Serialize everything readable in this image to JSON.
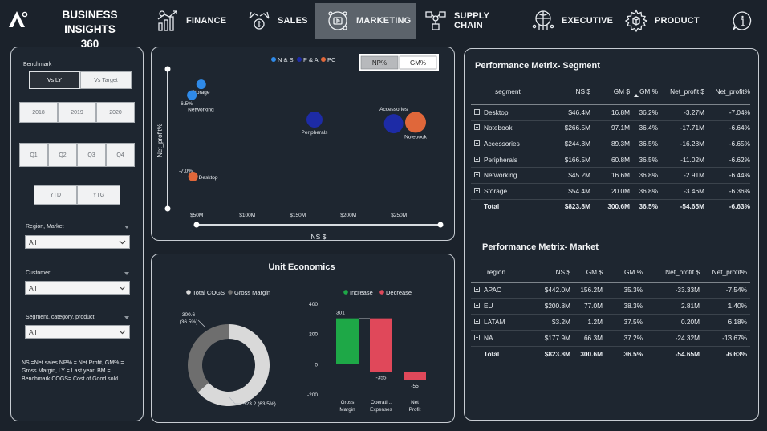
{
  "header": {
    "brand_line1": "BUSINESS INSIGHTS",
    "brand_line2": "360",
    "nav": [
      {
        "label": "FINANCE",
        "icon": "finance-chart-icon"
      },
      {
        "label": "SALES",
        "icon": "sales-money-icon"
      },
      {
        "label": "MARKETING",
        "icon": "marketing-icon"
      },
      {
        "label": "SUPPLY CHAIN",
        "icon": "supply-chain-icon"
      },
      {
        "label": "EXECUTIVE",
        "icon": "executive-icon"
      },
      {
        "label": "PRODUCT",
        "icon": "product-gear-icon"
      }
    ],
    "active_nav": "MARKETING",
    "info_icon": "info-icon"
  },
  "filters": {
    "benchmark_label": "Benchmark",
    "benchmark_options": [
      "Vs LY",
      "Vs Target"
    ],
    "benchmark_selected": "Vs LY",
    "years": [
      "2018",
      "2019",
      "2020"
    ],
    "quarters": [
      "Q1",
      "Q2",
      "Q3",
      "Q4"
    ],
    "periods": [
      "YTD",
      "YTG"
    ],
    "region_label": "Region, Market",
    "region_value": "All",
    "customer_label": "Customer",
    "customer_value": "All",
    "segment_label": "Segment, category, product",
    "segment_value": "All",
    "note": "NS =Net sales NP% = Net Profit, GM% = Gross Margin, LY = Last year, BM = Benchmark COGS= Cost of Good sold"
  },
  "scatter": {
    "toggles": [
      "NP%",
      "GM%"
    ],
    "toggle_selected": "NP%",
    "legend": [
      {
        "name": "N & S",
        "color": "#2f8ae8"
      },
      {
        "name": "P & A",
        "color": "#1d2ba6"
      },
      {
        "name": "PC",
        "color": "#e0673a"
      }
    ]
  },
  "chart_data": [
    {
      "type": "scatter",
      "xlabel": "NS $",
      "ylabel": "Net_profit%",
      "x_ticks": [
        "$50M",
        "$100M",
        "$150M",
        "$200M",
        "$250M"
      ],
      "x_tick_values": [
        50,
        100,
        150,
        200,
        250
      ],
      "y_ticks": [
        "-6.5%",
        "-7.0%"
      ],
      "y_tick_values": [
        -6.5,
        -7.0
      ],
      "xlim": [
        30,
        280
      ],
      "ylim": [
        -7.2,
        -6.3
      ],
      "points": [
        {
          "label": "Storage",
          "x": 54.4,
          "y": -6.36,
          "group": "N & S",
          "color": "#2f8ae8"
        },
        {
          "label": "Networking",
          "x": 45.2,
          "y": -6.44,
          "group": "N & S",
          "color": "#2f8ae8"
        },
        {
          "label": "Desktop",
          "x": 46.4,
          "y": -7.04,
          "group": "PC",
          "color": "#e0673a"
        },
        {
          "label": "Peripherals",
          "x": 166.5,
          "y": -6.62,
          "group": "P & A",
          "color": "#1d2ba6"
        },
        {
          "label": "Accessories",
          "x": 244.8,
          "y": -6.65,
          "group": "P & A",
          "color": "#1d2ba6"
        },
        {
          "label": "Notebook",
          "x": 266.5,
          "y": -6.64,
          "group": "PC",
          "color": "#e0673a"
        }
      ]
    },
    {
      "type": "pie",
      "title": "Unit Economics",
      "legend": [
        "Total COGS",
        "Gross Margin"
      ],
      "slices": [
        {
          "name": "Total COGS",
          "value": 523.2,
          "pct": 63.5,
          "label": "523.2 (63.5%)",
          "color": "#d9d9d9"
        },
        {
          "name": "Gross Margin",
          "value": 300.6,
          "pct": 36.5,
          "label": "300.6 (36.5%)",
          "color": "#6e6e6e"
        }
      ]
    },
    {
      "type": "bar",
      "subtype": "waterfall",
      "legend": [
        {
          "name": "Increase",
          "color": "#1ea847"
        },
        {
          "name": "Decrease",
          "color": "#e0485a"
        }
      ],
      "categories": [
        "Gross Margin",
        "Operational Expenses",
        "Net Profit"
      ],
      "category_labels": [
        [
          "Gross",
          "Margin"
        ],
        [
          "Operati...",
          "Expenses"
        ],
        [
          "Net",
          "Profit"
        ]
      ],
      "values": [
        301,
        -355,
        -55
      ],
      "value_labels": [
        "301",
        "-355",
        "-55"
      ],
      "y_ticks": [
        "400",
        "200",
        "0",
        "-200"
      ],
      "y_tick_values": [
        400,
        200,
        0,
        -200
      ],
      "ylim": [
        -200,
        400
      ]
    }
  ],
  "segment_table": {
    "title": "Performance Metrix- Segment",
    "headers": [
      "segment",
      "NS $",
      "GM $",
      "GM %",
      "Net_profit $",
      "Net_profit%"
    ],
    "rows": [
      [
        "Desktop",
        "$46.4M",
        "16.8M",
        "36.2%",
        "-3.27M",
        "-7.04%"
      ],
      [
        "Notebook",
        "$266.5M",
        "97.1M",
        "36.4%",
        "-17.71M",
        "-6.64%"
      ],
      [
        "Accessories",
        "$244.8M",
        "89.3M",
        "36.5%",
        "-16.28M",
        "-6.65%"
      ],
      [
        "Peripherals",
        "$166.5M",
        "60.8M",
        "36.5%",
        "-11.02M",
        "-6.62%"
      ],
      [
        "Networking",
        "$45.2M",
        "16.6M",
        "36.8%",
        "-2.91M",
        "-6.44%"
      ],
      [
        "Storage",
        "$54.4M",
        "20.0M",
        "36.8%",
        "-3.46M",
        "-6.36%"
      ]
    ],
    "total": [
      "Total",
      "$823.8M",
      "300.6M",
      "36.5%",
      "-54.65M",
      "-6.63%"
    ]
  },
  "market_table": {
    "title": "Performance Metrix- Market",
    "headers": [
      "region",
      "NS $",
      "GM $",
      "GM %",
      "Net_profit $",
      "Net_profit%"
    ],
    "rows": [
      [
        "APAC",
        "$442.0M",
        "156.2M",
        "35.3%",
        "-33.33M",
        "-7.54%"
      ],
      [
        "EU",
        "$200.8M",
        "77.0M",
        "38.3%",
        "2.81M",
        "1.40%"
      ],
      [
        "LATAM",
        "$3.2M",
        "1.2M",
        "37.5%",
        "0.20M",
        "6.18%"
      ],
      [
        "NA",
        "$177.9M",
        "66.3M",
        "37.2%",
        "-24.32M",
        "-13.67%"
      ]
    ],
    "total": [
      "Total",
      "$823.8M",
      "300.6M",
      "36.5%",
      "-54.65M",
      "-6.63%"
    ]
  }
}
